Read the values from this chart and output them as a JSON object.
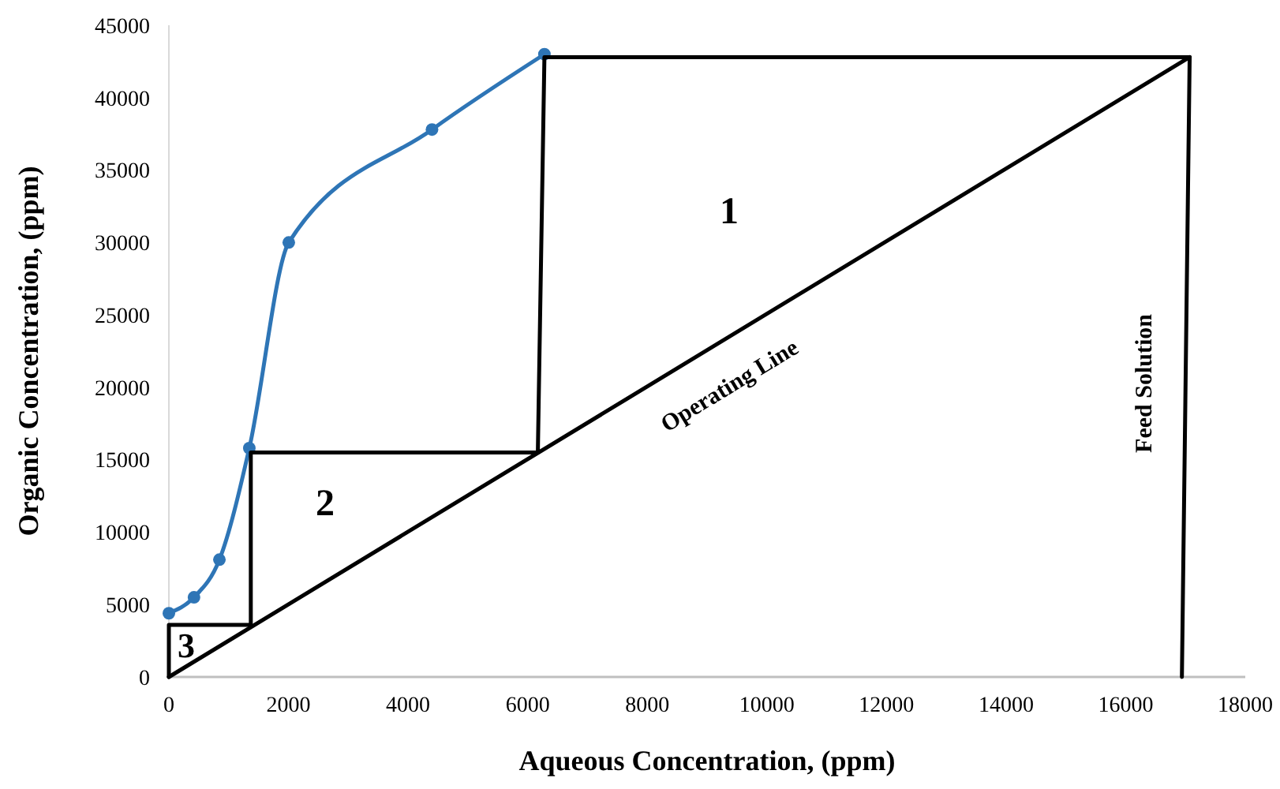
{
  "chart_data": {
    "type": "line",
    "xlabel": "Aqueous Concentration, (ppm)",
    "ylabel": "Organic Concentration, (ppm)",
    "xlim": [
      0,
      18000
    ],
    "xticks": [
      0,
      2000,
      4000,
      6000,
      8000,
      10000,
      12000,
      14000,
      16000,
      18000
    ],
    "ylim": [
      0,
      45000
    ],
    "yticks": [
      0,
      5000,
      10000,
      15000,
      20000,
      25000,
      30000,
      35000,
      40000,
      45000
    ],
    "grid": false,
    "series": [
      {
        "color": "#2e75b6",
        "marker": "circle",
        "x": [
          0,
          420,
          845,
          1345,
          2005,
          4400,
          6280
        ],
        "values": [
          4400,
          5500,
          8100,
          15800,
          30000,
          37800,
          43000
        ]
      },
      {
        "color": "#000000",
        "marker": "none",
        "x": [
          0,
          17070
        ],
        "values": [
          0,
          42800
        ]
      },
      {
        "color": "#000000",
        "marker": "none",
        "x": [
          17070,
          6280,
          6170,
          1370,
          1370,
          0,
          0
        ],
        "values": [
          42800,
          42800,
          15500,
          15500,
          3600,
          3600,
          0
        ]
      },
      {
        "color": "#000000",
        "marker": "none",
        "x": [
          17070,
          16940
        ],
        "values": [
          42800,
          0
        ]
      }
    ],
    "annotations": [
      "1",
      "2",
      "3",
      "Operating Line",
      "Feed Solution"
    ]
  }
}
